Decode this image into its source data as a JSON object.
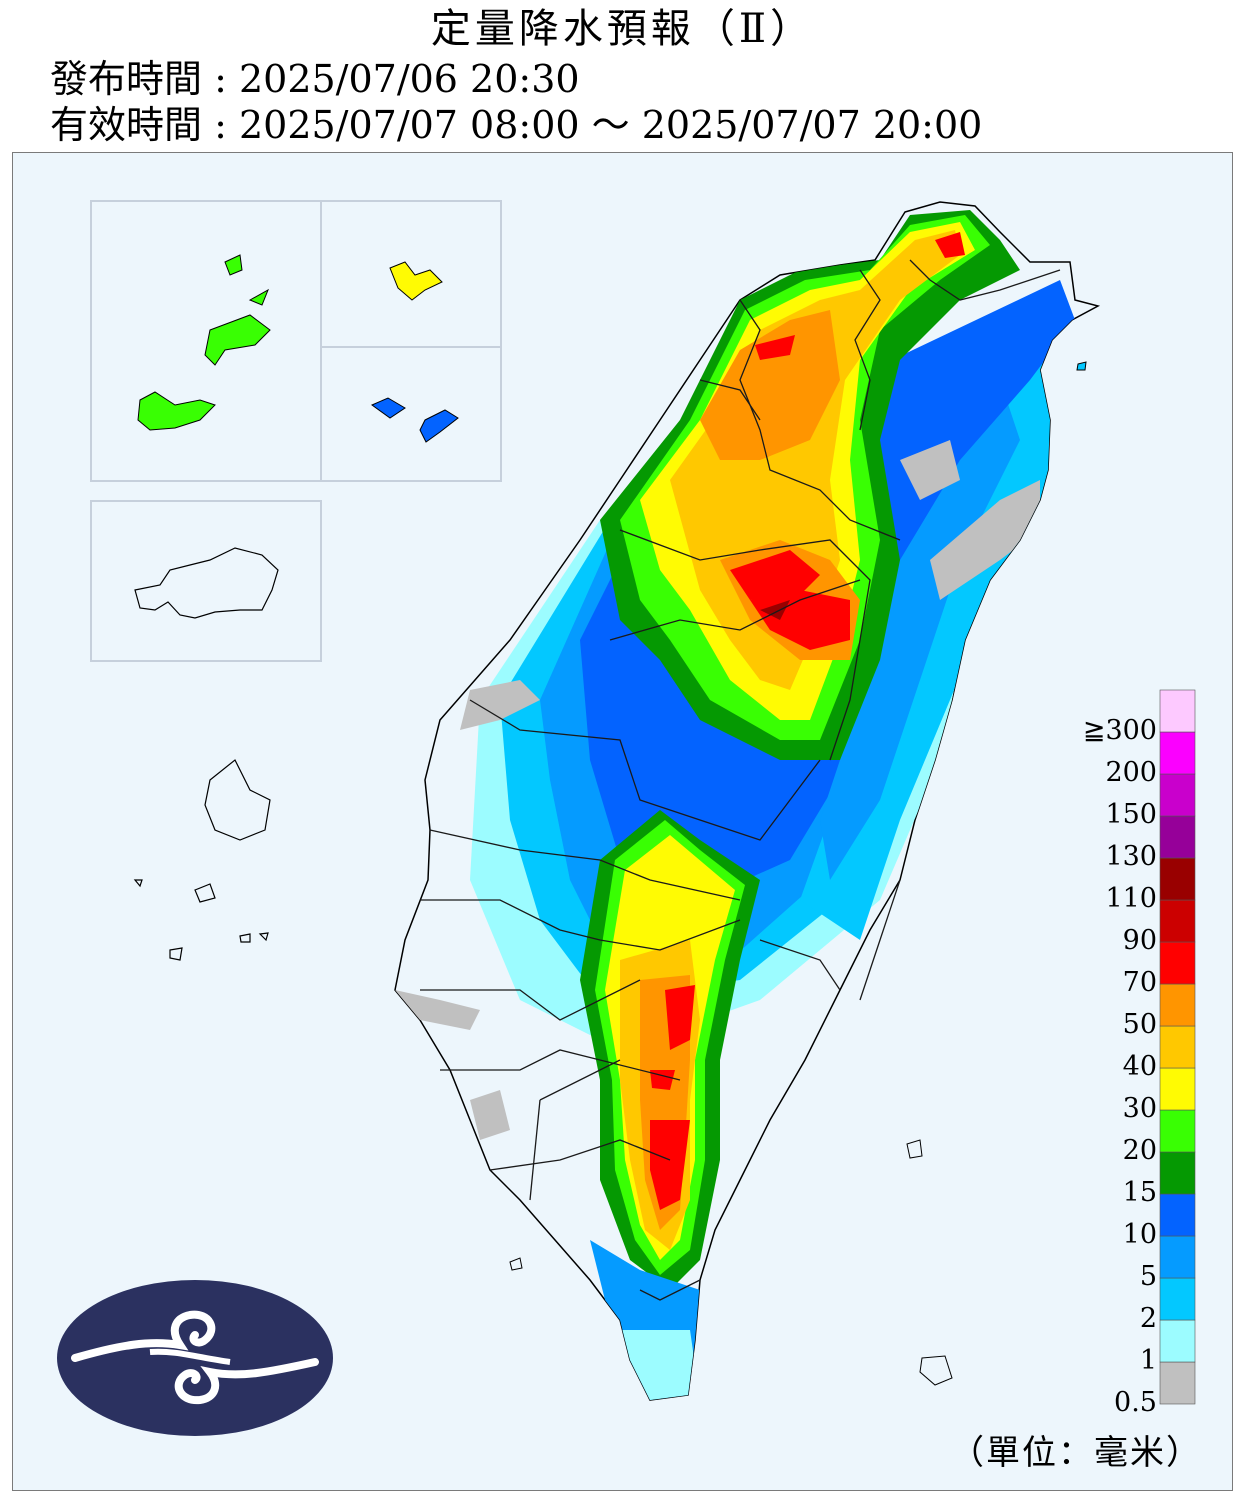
{
  "header": {
    "title": "定量降水預報（Ⅱ）",
    "issue_time": "發布時間 : 2025/07/06 20:30",
    "valid_time": "有效時間 : 2025/07/07 08:00 ～ 2025/07/07 20:00"
  },
  "legend": {
    "unit": "（單位：毫米）",
    "levels": [
      {
        "label": "0.5",
        "color": "#c0c0c0"
      },
      {
        "label": "1",
        "color": "#9cfcff"
      },
      {
        "label": "2",
        "color": "#03c8ff"
      },
      {
        "label": "5",
        "color": "#059bff"
      },
      {
        "label": "10",
        "color": "#0363ff"
      },
      {
        "label": "15",
        "color": "#059902"
      },
      {
        "label": "20",
        "color": "#39ff03"
      },
      {
        "label": "30",
        "color": "#fffb03"
      },
      {
        "label": "40",
        "color": "#ffc800"
      },
      {
        "label": "50",
        "color": "#ff9500"
      },
      {
        "label": "70",
        "color": "#ff0000"
      },
      {
        "label": "90",
        "color": "#cc0000"
      },
      {
        "label": "110",
        "color": "#990000"
      },
      {
        "label": "130",
        "color": "#960099"
      },
      {
        "label": "150",
        "color": "#c900cc"
      },
      {
        "label": "200",
        "color": "#fb00ff"
      },
      {
        "label": "≧300",
        "color": "#fdc9ff"
      }
    ]
  },
  "colors": {
    "background": "#edf6fc",
    "land": "#edf6fc",
    "logo": "#2b3160",
    "boundary": "#000000"
  },
  "icons": {
    "logo": "cwa-logo-icon"
  }
}
